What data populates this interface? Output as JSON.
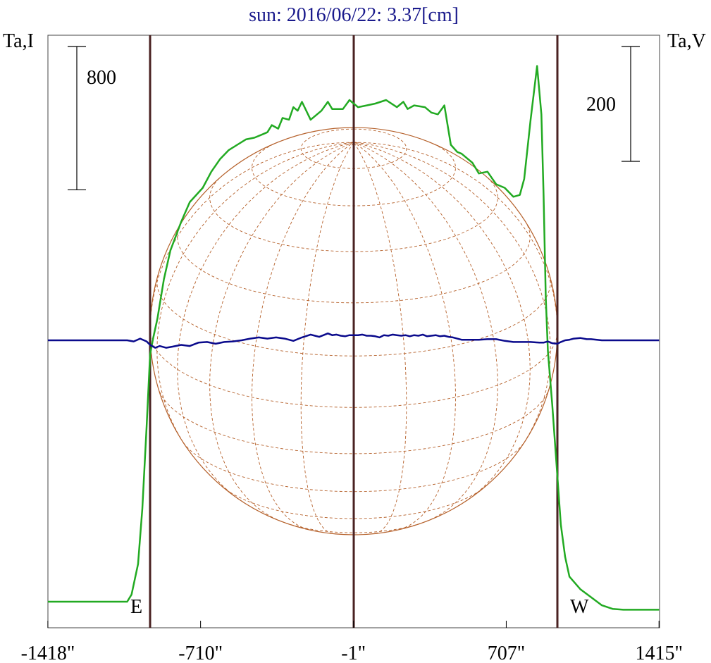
{
  "chart_data": {
    "type": "line",
    "title": "sun: 2016/06/22: 3.37[cm]",
    "left_axis_label": "Ta,I",
    "right_axis_label": "Ta,V",
    "left_scale_bar": {
      "value": 800,
      "label": "800"
    },
    "right_scale_bar": {
      "value": 200,
      "label": "200"
    },
    "x_unit": "arcsec",
    "xlim": [
      -1418,
      1415
    ],
    "x_ticks": [
      {
        "value": -1418,
        "label": "-1418\""
      },
      {
        "value": -710,
        "label": "-710\""
      },
      {
        "value": -1,
        "label": "-1\""
      },
      {
        "value": 707,
        "label": "707\""
      },
      {
        "value": 1415,
        "label": "1415\""
      }
    ],
    "limb_markers": [
      {
        "x": -944,
        "label": "E"
      },
      {
        "x": 0,
        "label": ""
      },
      {
        "x": 944,
        "label": "W"
      }
    ],
    "solar_disk": {
      "center_x": 0,
      "radius": 944,
      "grid": true
    },
    "series": [
      {
        "name": "Ta,I",
        "axis": "left",
        "color": "#22aa22",
        "x": [
          -1418,
          -1050,
          -1030,
          -1000,
          -980,
          -960,
          -944,
          -930,
          -910,
          -880,
          -850,
          -800,
          -760,
          -700,
          -660,
          -620,
          -580,
          -540,
          -500,
          -460,
          -420,
          -400,
          -380,
          -350,
          -330,
          -300,
          -280,
          -260,
          -240,
          -200,
          -150,
          -120,
          -100,
          -50,
          -20,
          20,
          60,
          100,
          150,
          200,
          230,
          250,
          280,
          330,
          360,
          390,
          420,
          450,
          480,
          500,
          550,
          580,
          620,
          660,
          700,
          740,
          770,
          790,
          820,
          850,
          870,
          880,
          890,
          900,
          920,
          944,
          960,
          980,
          1000,
          1050,
          1100,
          1150,
          1200,
          1250,
          1300,
          1415
        ],
        "values": [
          0,
          0,
          40,
          210,
          520,
          980,
          1380,
          1470,
          1580,
          1800,
          1960,
          2120,
          2230,
          2310,
          2400,
          2470,
          2520,
          2550,
          2580,
          2590,
          2610,
          2620,
          2660,
          2640,
          2700,
          2690,
          2760,
          2740,
          2790,
          2690,
          2740,
          2790,
          2750,
          2750,
          2800,
          2760,
          2770,
          2780,
          2800,
          2760,
          2790,
          2750,
          2770,
          2760,
          2730,
          2720,
          2770,
          2550,
          2510,
          2500,
          2450,
          2390,
          2400,
          2330,
          2310,
          2260,
          2270,
          2360,
          2690,
          2990,
          2720,
          2270,
          1700,
          1400,
          1100,
          700,
          430,
          250,
          140,
          70,
          25,
          -20,
          -40,
          -45,
          -45,
          -45
        ]
      },
      {
        "name": "Ta,V",
        "axis": "right",
        "color": "#0a0a8c",
        "x": [
          -1418,
          -1050,
          -1020,
          -990,
          -960,
          -944,
          -920,
          -900,
          -870,
          -840,
          -800,
          -760,
          -720,
          -680,
          -640,
          -600,
          -560,
          -520,
          -480,
          -440,
          -400,
          -360,
          -320,
          -280,
          -240,
          -200,
          -180,
          -160,
          -140,
          -120,
          -100,
          -80,
          -60,
          -40,
          -20,
          0,
          20,
          40,
          60,
          80,
          100,
          120,
          140,
          160,
          180,
          200,
          220,
          240,
          260,
          280,
          300,
          320,
          340,
          360,
          380,
          400,
          420,
          440,
          460,
          480,
          500,
          540,
          580,
          620,
          660,
          700,
          740,
          780,
          820,
          860,
          880,
          900,
          920,
          944,
          960,
          980,
          1000,
          1020,
          1050,
          1080,
          1100,
          1150,
          1200,
          1300,
          1415
        ],
        "values": [
          0,
          0,
          -2,
          3,
          -2,
          -8,
          -13,
          -10,
          -13,
          -11,
          -8,
          -10,
          -4,
          -3,
          -6,
          -3,
          -2,
          0,
          3,
          5,
          3,
          5,
          3,
          -1,
          5,
          10,
          8,
          6,
          9,
          12,
          9,
          10,
          8,
          7,
          9,
          9,
          9,
          10,
          8,
          8,
          7,
          5,
          9,
          8,
          10,
          9,
          8,
          9,
          7,
          9,
          8,
          10,
          7,
          8,
          9,
          7,
          8,
          6,
          5,
          3,
          1,
          1,
          1,
          2,
          2,
          -1,
          -3,
          -3,
          -3,
          -4,
          -4,
          -2,
          -5,
          -6,
          -3,
          0,
          1,
          3,
          4,
          2,
          2,
          0,
          0,
          0,
          0
        ]
      }
    ]
  }
}
